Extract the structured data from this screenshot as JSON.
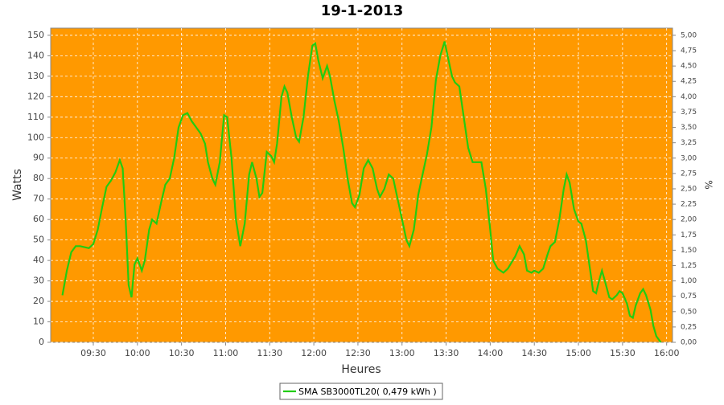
{
  "chart_data": {
    "type": "line",
    "title": "19-1-2013",
    "x_label": "Heures",
    "y_label": "Watts",
    "y2_label": "%",
    "background": "#ff9900",
    "grid": true,
    "xlim": [
      "09:01",
      "16:04"
    ],
    "xticks": [
      "09:30",
      "10:00",
      "10:30",
      "11:00",
      "11:30",
      "12:00",
      "12:30",
      "13:00",
      "13:30",
      "14:00",
      "14:30",
      "15:00",
      "15:30",
      "16:00"
    ],
    "ylim": [
      0,
      153.5
    ],
    "yticks": [
      0,
      10,
      20,
      30,
      40,
      50,
      60,
      70,
      80,
      90,
      100,
      110,
      120,
      130,
      140,
      150
    ],
    "y2lim": [
      0,
      5.117
    ],
    "y2ticks": [
      {
        "value": 0,
        "label": "0,00"
      },
      {
        "value": 0.25,
        "label": "0,25"
      },
      {
        "value": 0.5,
        "label": "0,50"
      },
      {
        "value": 0.75,
        "label": "0,75"
      },
      {
        "value": 1,
        "label": "1,00"
      },
      {
        "value": 1.25,
        "label": "1,25"
      },
      {
        "value": 1.5,
        "label": "1,50"
      },
      {
        "value": 1.75,
        "label": "1,75"
      },
      {
        "value": 2,
        "label": "2,00"
      },
      {
        "value": 2.25,
        "label": "2,25"
      },
      {
        "value": 2.5,
        "label": "2,50"
      },
      {
        "value": 2.75,
        "label": "2,75"
      },
      {
        "value": 3,
        "label": "3,00"
      },
      {
        "value": 3.25,
        "label": "3,25"
      },
      {
        "value": 3.5,
        "label": "3,50"
      },
      {
        "value": 3.75,
        "label": "3,75"
      },
      {
        "value": 4,
        "label": "4,00"
      },
      {
        "value": 4.25,
        "label": "4,25"
      },
      {
        "value": 4.5,
        "label": "4,50"
      },
      {
        "value": 4.75,
        "label": "4,75"
      },
      {
        "value": 5,
        "label": "5,00"
      }
    ],
    "x": [
      "09:09",
      "09:12",
      "09:15",
      "09:18",
      "09:21",
      "09:24",
      "09:27",
      "09:30",
      "09:33",
      "09:36",
      "09:39",
      "09:42",
      "09:45",
      "09:48",
      "09:50",
      "09:52",
      "09:54",
      "09:56",
      "09:58",
      "10:00",
      "10:03",
      "10:05",
      "10:08",
      "10:10",
      "10:13",
      "10:16",
      "10:19",
      "10:22",
      "10:25",
      "10:28",
      "10:31",
      "10:34",
      "10:37",
      "10:40",
      "10:43",
      "10:46",
      "10:48",
      "10:51",
      "10:53",
      "10:56",
      "10:59",
      "11:01",
      "11:04",
      "11:07",
      "11:10",
      "11:13",
      "11:16",
      "11:18",
      "11:21",
      "11:23",
      "11:25",
      "11:28",
      "11:31",
      "11:33",
      "11:35",
      "11:38",
      "11:40",
      "11:42",
      "11:45",
      "11:48",
      "11:50",
      "11:53",
      "11:56",
      "11:59",
      "12:01",
      "12:03",
      "12:06",
      "12:09",
      "12:11",
      "12:14",
      "12:17",
      "12:20",
      "12:23",
      "12:26",
      "12:28",
      "12:31",
      "12:34",
      "12:37",
      "12:40",
      "12:43",
      "12:45",
      "12:48",
      "12:51",
      "12:54",
      "12:57",
      "13:00",
      "13:03",
      "13:05",
      "13:08",
      "13:11",
      "13:14",
      "13:17",
      "13:20",
      "13:23",
      "13:26",
      "13:29",
      "13:31",
      "13:34",
      "13:36",
      "13:39",
      "13:42",
      "13:45",
      "13:48",
      "13:51",
      "13:54",
      "13:57",
      "14:00",
      "14:02",
      "14:05",
      "14:09",
      "14:12",
      "14:17",
      "14:20",
      "14:23",
      "14:25",
      "14:28",
      "14:30",
      "14:33",
      "14:36",
      "14:39",
      "14:41",
      "14:44",
      "14:47",
      "14:50",
      "14:52",
      "14:54",
      "14:57",
      "15:00",
      "15:02",
      "15:05",
      "15:08",
      "15:10",
      "15:12",
      "15:14",
      "15:16",
      "15:18",
      "15:21",
      "15:23",
      "15:26",
      "15:28",
      "15:30",
      "15:33",
      "15:35",
      "15:37",
      "15:39",
      "15:42",
      "15:44",
      "15:46",
      "15:49",
      "15:51",
      "15:53",
      "15:56"
    ],
    "series": [
      {
        "name": "SMA SB3000TL20( 0,479 kWh )",
        "color": "#22cc11",
        "values": [
          23,
          35,
          44,
          47,
          47,
          46.5,
          46,
          48,
          55,
          66,
          76,
          79,
          83,
          89,
          85,
          60,
          28,
          22,
          38,
          41,
          35,
          40,
          55,
          60,
          58,
          68,
          77,
          80,
          90,
          105,
          111,
          112,
          108,
          105,
          102,
          97,
          88,
          80,
          77,
          88,
          111,
          110,
          90,
          60,
          47,
          58,
          82,
          88,
          80,
          71,
          73,
          93,
          91,
          88,
          97,
          120,
          125,
          122,
          110,
          100,
          98,
          110,
          130,
          145,
          146,
          138,
          129,
          135,
          130,
          118,
          108,
          95,
          80,
          68,
          66,
          72,
          85,
          89,
          85,
          75,
          71,
          75,
          82,
          80,
          70,
          60,
          50,
          47,
          55,
          72,
          82,
          92,
          105,
          128,
          140,
          147,
          140,
          130,
          127,
          125,
          110,
          95,
          88,
          88,
          88,
          75,
          55,
          40,
          36,
          34,
          36,
          42,
          47,
          43,
          35,
          34,
          35,
          34,
          36,
          43,
          47,
          49,
          60,
          75,
          82,
          78,
          65,
          59,
          58,
          50,
          35,
          25,
          24,
          30,
          35,
          30,
          22,
          21,
          23,
          25,
          24,
          19,
          13,
          12,
          18,
          24,
          26,
          23,
          16,
          8,
          3,
          0
        ]
      }
    ]
  }
}
